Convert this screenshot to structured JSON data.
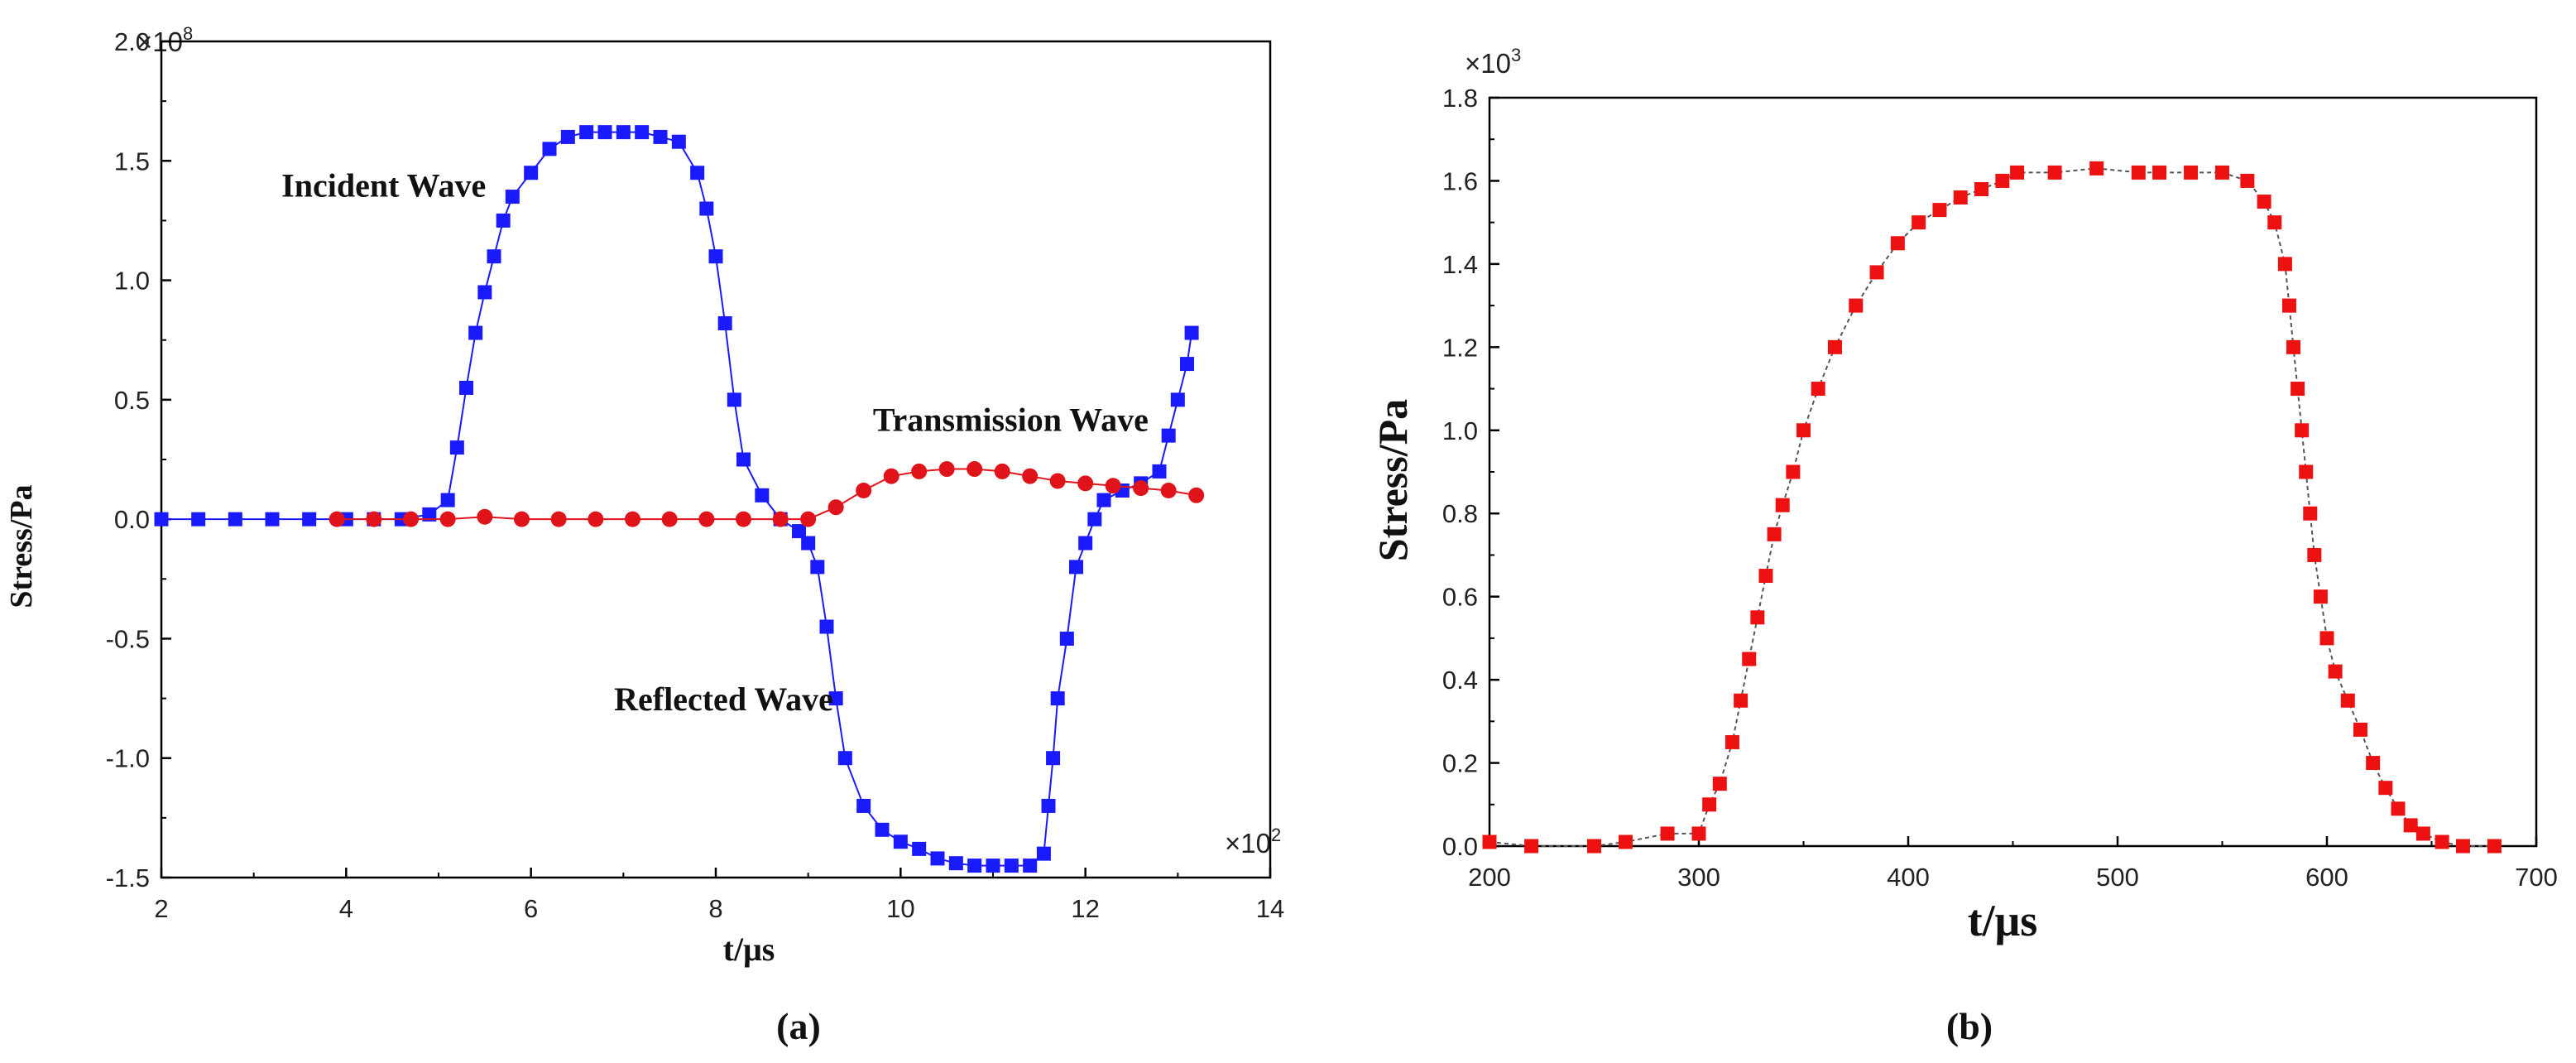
{
  "chart_data": [
    {
      "type": "line",
      "panel_label": "(a)",
      "title": "",
      "xlabel": "t/μs",
      "ylabel": "Stress/Pa",
      "x_multiplier": "×10",
      "x_multiplier_exp": "2",
      "y_multiplier": "×10",
      "y_multiplier_exp": "8",
      "xlim": [
        2,
        14
      ],
      "ylim": [
        -1.5,
        2.0
      ],
      "x_ticks": [
        2,
        4,
        6,
        8,
        10,
        12,
        14
      ],
      "x_tick_labels": [
        "2",
        "4",
        "6",
        "8",
        "10",
        "12",
        "14"
      ],
      "y_ticks": [
        -1.5,
        -1.0,
        -0.5,
        0.0,
        0.5,
        1.0,
        1.5,
        2.0
      ],
      "y_tick_labels": [
        "-1.5",
        "-1.0",
        "-0.5",
        "0.0",
        "0.5",
        "1.0",
        "1.5",
        "2.0"
      ],
      "annotations": [
        {
          "text": "Incident Wave",
          "x": 3.3,
          "y": 1.35
        },
        {
          "text": "Transmission Wave",
          "x": 9.7,
          "y": 0.37
        },
        {
          "text": "Reflected Wave",
          "x": 6.9,
          "y": -0.8
        }
      ],
      "series": [
        {
          "name": "Incident / Reflected Wave",
          "color": "#1a1aff",
          "marker": "square",
          "x": [
            2.0,
            2.4,
            2.8,
            3.2,
            3.6,
            4.0,
            4.3,
            4.6,
            4.9,
            5.1,
            5.2,
            5.3,
            5.4,
            5.5,
            5.6,
            5.7,
            5.8,
            6.0,
            6.2,
            6.4,
            6.6,
            6.8,
            7.0,
            7.2,
            7.4,
            7.6,
            7.8,
            7.9,
            8.0,
            8.1,
            8.2,
            8.3,
            8.5,
            8.7,
            8.9,
            9.0,
            9.1,
            9.2,
            9.3,
            9.4,
            9.6,
            9.8,
            10.0,
            10.2,
            10.4,
            10.6,
            10.8,
            11.0,
            11.2,
            11.4,
            11.55,
            11.6,
            11.65,
            11.7,
            11.8,
            11.9,
            12.0,
            12.1,
            12.2,
            12.4,
            12.6,
            12.8,
            12.9,
            13.0,
            13.1,
            13.15
          ],
          "y": [
            0.0,
            0.0,
            0.0,
            0.0,
            0.0,
            0.0,
            0.0,
            0.0,
            0.02,
            0.08,
            0.3,
            0.55,
            0.78,
            0.95,
            1.1,
            1.25,
            1.35,
            1.45,
            1.55,
            1.6,
            1.62,
            1.62,
            1.62,
            1.62,
            1.6,
            1.58,
            1.45,
            1.3,
            1.1,
            0.82,
            0.5,
            0.25,
            0.1,
            0.0,
            -0.05,
            -0.1,
            -0.2,
            -0.45,
            -0.75,
            -1.0,
            -1.2,
            -1.3,
            -1.35,
            -1.38,
            -1.42,
            -1.44,
            -1.45,
            -1.45,
            -1.45,
            -1.45,
            -1.4,
            -1.2,
            -1.0,
            -0.75,
            -0.5,
            -0.2,
            -0.1,
            0.0,
            0.08,
            0.12,
            0.15,
            0.2,
            0.35,
            0.5,
            0.65,
            0.78
          ]
        },
        {
          "name": "Transmission Wave",
          "color": "#e0131a",
          "marker": "circle",
          "x": [
            3.9,
            4.3,
            4.7,
            5.1,
            5.5,
            5.9,
            6.3,
            6.7,
            7.1,
            7.5,
            7.9,
            8.3,
            8.7,
            9.0,
            9.3,
            9.6,
            9.9,
            10.2,
            10.5,
            10.8,
            11.1,
            11.4,
            11.7,
            12.0,
            12.3,
            12.6,
            12.9,
            13.2
          ],
          "y": [
            0.0,
            0.0,
            0.0,
            0.0,
            0.01,
            0.0,
            0.0,
            0.0,
            0.0,
            0.0,
            0.0,
            0.0,
            0.0,
            0.0,
            0.05,
            0.12,
            0.18,
            0.2,
            0.21,
            0.21,
            0.2,
            0.18,
            0.16,
            0.15,
            0.14,
            0.13,
            0.12,
            0.1
          ]
        }
      ]
    },
    {
      "type": "line",
      "panel_label": "(b)",
      "title": "",
      "xlabel": "t/μs",
      "ylabel": "Stress/Pa",
      "y_multiplier": "×10",
      "y_multiplier_exp": "3",
      "xlim": [
        200,
        700
      ],
      "ylim": [
        0.0,
        1.8
      ],
      "x_ticks": [
        200,
        300,
        400,
        500,
        600,
        700
      ],
      "x_tick_labels": [
        "200",
        "300",
        "400",
        "500",
        "600",
        "700"
      ],
      "y_ticks": [
        0.0,
        0.2,
        0.4,
        0.6,
        0.8,
        1.0,
        1.2,
        1.4,
        1.6,
        1.8
      ],
      "y_tick_labels": [
        "0.0",
        "0.2",
        "0.4",
        "0.6",
        "0.8",
        "1.0",
        "1.2",
        "1.4",
        "1.6",
        "1.8"
      ],
      "series": [
        {
          "name": "Stress",
          "color": "#ee1111",
          "marker": "square",
          "x": [
            200,
            220,
            250,
            265,
            285,
            300,
            305,
            310,
            316,
            320,
            324,
            328,
            332,
            336,
            340,
            345,
            350,
            357,
            365,
            375,
            385,
            395,
            405,
            415,
            425,
            435,
            445,
            452,
            470,
            490,
            510,
            520,
            535,
            550,
            562,
            570,
            575,
            580,
            582,
            584,
            586,
            588,
            590,
            592,
            594,
            597,
            600,
            604,
            610,
            616,
            622,
            628,
            634,
            640,
            646,
            655,
            665,
            680
          ],
          "y": [
            0.01,
            0.0,
            0.0,
            0.01,
            0.03,
            0.03,
            0.1,
            0.15,
            0.25,
            0.35,
            0.45,
            0.55,
            0.65,
            0.75,
            0.82,
            0.9,
            1.0,
            1.1,
            1.2,
            1.3,
            1.38,
            1.45,
            1.5,
            1.53,
            1.56,
            1.58,
            1.6,
            1.62,
            1.62,
            1.63,
            1.62,
            1.62,
            1.62,
            1.62,
            1.6,
            1.55,
            1.5,
            1.4,
            1.3,
            1.2,
            1.1,
            1.0,
            0.9,
            0.8,
            0.7,
            0.6,
            0.5,
            0.42,
            0.35,
            0.28,
            0.2,
            0.14,
            0.09,
            0.05,
            0.03,
            0.01,
            0.0,
            0.0
          ]
        }
      ]
    }
  ]
}
